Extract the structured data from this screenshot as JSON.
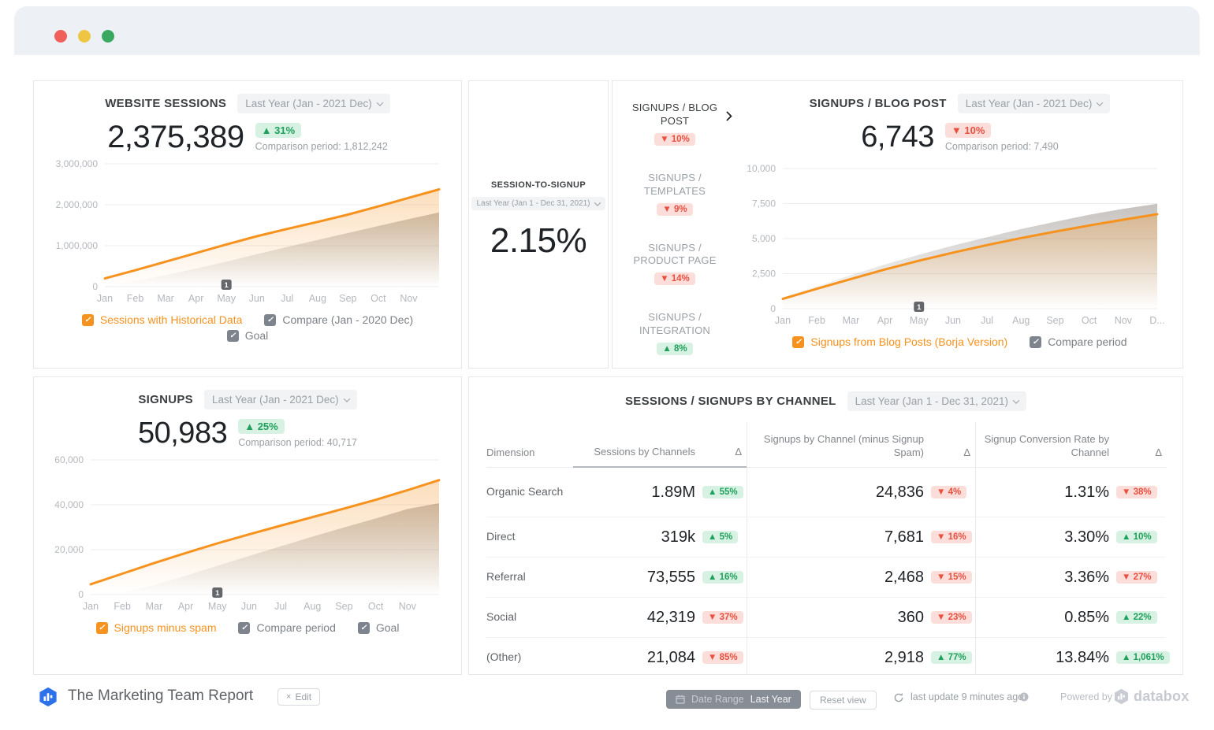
{
  "colors": {
    "accent_orange": "#f6921e",
    "up_green": "#1fa05c",
    "up_green_bg": "#d7f2e2",
    "down_red": "#e8503f",
    "down_red_bg": "#fbddd9",
    "traffic_red": "#f15f5d",
    "traffic_yellow": "#eec643",
    "traffic_green": "#3aa860"
  },
  "cards": {
    "website_sessions": {
      "title": "WEBSITE SESSIONS",
      "range": "Last Year (Jan - 2021 Dec)",
      "value": "2,375,389",
      "badge": {
        "dir": "up",
        "text": "31%"
      },
      "comparison": "Comparison period: 1,812,242",
      "legend": [
        {
          "label": "Sessions with Historical Data"
        },
        {
          "label": "Compare (Jan - 2020 Dec)"
        },
        {
          "label": "Goal"
        }
      ]
    },
    "session_to_signup": {
      "title": "SESSION-TO-SIGNUP",
      "range": "Last Year (Jan 1 - Dec 31, 2021)",
      "value": "2.15%"
    },
    "metric_list": [
      {
        "label": "SIGNUPS / BLOG POST",
        "badge": {
          "dir": "down",
          "text": "10%"
        }
      },
      {
        "label": "SIGNUPS / TEMPLATES",
        "badge": {
          "dir": "down",
          "text": "9%"
        }
      },
      {
        "label": "SIGNUPS / PRODUCT PAGE",
        "badge": {
          "dir": "down",
          "text": "14%"
        }
      },
      {
        "label": "SIGNUPS / INTEGRATION",
        "badge": {
          "dir": "up",
          "text": "8%"
        }
      }
    ],
    "signups_blog_post": {
      "title": "SIGNUPS / BLOG POST",
      "range": "Last Year (Jan - 2021 Dec)",
      "value": "6,743",
      "badge": {
        "dir": "down",
        "text": "10%"
      },
      "comparison": "Comparison period: 7,490",
      "legend": [
        {
          "label": "Signups from Blog Posts (Borja Version)"
        },
        {
          "label": "Compare period"
        }
      ]
    },
    "signups": {
      "title": "SIGNUPS",
      "range": "Last Year (Jan - 2021 Dec)",
      "value": "50,983",
      "badge": {
        "dir": "up",
        "text": "25%"
      },
      "comparison": "Comparison period: 40,717",
      "legend": [
        {
          "label": "Signups minus spam"
        },
        {
          "label": "Compare period"
        },
        {
          "label": "Goal"
        }
      ]
    },
    "table_card": {
      "title": "SESSIONS / SIGNUPS BY CHANNEL",
      "range": "Last Year (Jan 1 - Dec 31, 2021)"
    }
  },
  "chart_data": [
    {
      "id": "website_sessions",
      "type": "area",
      "title": "WEBSITE SESSIONS",
      "x": [
        "Jan",
        "Feb",
        "Mar",
        "Apr",
        "May",
        "Jun",
        "Jul",
        "Aug",
        "Sep",
        "Oct",
        "Nov",
        "Dec"
      ],
      "x_tick_labels": [
        "Jan",
        "Feb",
        "Mar",
        "Apr",
        "May",
        "Jun",
        "Jul",
        "Aug",
        "Sep",
        "Oct",
        "Nov"
      ],
      "ylim": [
        0,
        3000000
      ],
      "yticks": [
        {
          "v": 3000000,
          "label": "3,000,000"
        },
        {
          "v": 2000000,
          "label": "2,000,000"
        },
        {
          "v": 1000000,
          "label": "1,000,000"
        },
        {
          "v": 0,
          "label": "0"
        }
      ],
      "grid": true,
      "legend_position": "bottom",
      "marker": {
        "x_index": 4,
        "label": "1"
      },
      "series": [
        {
          "name": "Compare (Jan - 2020 Dec)",
          "role": "compare",
          "values": [
            30000,
            140000,
            280000,
            440000,
            610000,
            790000,
            970000,
            1140000,
            1310000,
            1480000,
            1650000,
            1812242
          ]
        },
        {
          "name": "Sessions with Historical Data",
          "role": "current",
          "values": [
            200000,
            400000,
            610000,
            820000,
            1030000,
            1230000,
            1410000,
            1580000,
            1760000,
            1960000,
            2170000,
            2375389
          ]
        }
      ]
    },
    {
      "id": "signups_blog_post",
      "type": "area",
      "title": "SIGNUPS / BLOG POST",
      "x": [
        "Jan",
        "Feb",
        "Mar",
        "Apr",
        "May",
        "Jun",
        "Jul",
        "Aug",
        "Sep",
        "Oct",
        "Nov",
        "Dec"
      ],
      "x_tick_labels": [
        "Jan",
        "Feb",
        "Mar",
        "Apr",
        "May",
        "Jun",
        "Jul",
        "Aug",
        "Sep",
        "Oct",
        "Nov",
        "D..."
      ],
      "ylim": [
        0,
        10000
      ],
      "yticks": [
        {
          "v": 10000,
          "label": "10,000"
        },
        {
          "v": 7500,
          "label": "7,500"
        },
        {
          "v": 5000,
          "label": "5,000"
        },
        {
          "v": 2500,
          "label": "2,500"
        },
        {
          "v": 0,
          "label": "0"
        }
      ],
      "grid": true,
      "legend_position": "bottom",
      "marker": {
        "x_index": 4,
        "label": "1"
      },
      "series": [
        {
          "name": "Compare period",
          "role": "compare",
          "values": [
            800,
            1600,
            2400,
            3150,
            3850,
            4500,
            5100,
            5680,
            6200,
            6700,
            7120,
            7490
          ]
        },
        {
          "name": "Signups from Blog Posts (Borja Version)",
          "role": "current",
          "values": [
            700,
            1420,
            2120,
            2800,
            3420,
            4000,
            4540,
            5040,
            5500,
            5940,
            6350,
            6743
          ]
        }
      ]
    },
    {
      "id": "signups",
      "type": "area",
      "title": "SIGNUPS",
      "x": [
        "Jan",
        "Feb",
        "Mar",
        "Apr",
        "May",
        "Jun",
        "Jul",
        "Aug",
        "Sep",
        "Oct",
        "Nov",
        "Dec"
      ],
      "x_tick_labels": [
        "Jan",
        "Feb",
        "Mar",
        "Apr",
        "May",
        "Jun",
        "Jul",
        "Aug",
        "Sep",
        "Oct",
        "Nov"
      ],
      "ylim": [
        0,
        60000
      ],
      "yticks": [
        {
          "v": 60000,
          "label": "60,000"
        },
        {
          "v": 40000,
          "label": "40,000"
        },
        {
          "v": 20000,
          "label": "20,000"
        },
        {
          "v": 0,
          "label": "0"
        }
      ],
      "grid": true,
      "legend_position": "bottom",
      "marker": {
        "x_index": 4,
        "label": "1"
      },
      "series": [
        {
          "name": "Compare period",
          "role": "compare",
          "values": [
            0,
            900,
            4200,
            8400,
            12800,
            17200,
            21500,
            25800,
            29900,
            33900,
            38100,
            40717
          ]
        },
        {
          "name": "Signups minus spam",
          "role": "current",
          "values": [
            4600,
            9300,
            14000,
            18500,
            22800,
            26800,
            30700,
            34500,
            38300,
            42200,
            46500,
            50983
          ]
        }
      ]
    },
    {
      "id": "sessions_signups_by_channel",
      "type": "table",
      "title": "SESSIONS / SIGNUPS BY CHANNEL",
      "columns": [
        "Dimension",
        "Sessions by Channels",
        "Δ",
        "Signups by Channel (minus Signup Spam)",
        "Δ",
        "Signup Conversion Rate by Channel",
        "Δ"
      ],
      "rows": [
        {
          "dimension": "Organic Search",
          "sessions": "1.89M",
          "sessions_delta": {
            "dir": "up",
            "text": "55%"
          },
          "signups": "24,836",
          "signups_delta": {
            "dir": "down",
            "text": "4%"
          },
          "conversion": "1.31%",
          "conversion_delta": {
            "dir": "down",
            "text": "38%"
          }
        },
        {
          "dimension": "Direct",
          "sessions": "319k",
          "sessions_delta": {
            "dir": "up",
            "text": "5%"
          },
          "signups": "7,681",
          "signups_delta": {
            "dir": "down",
            "text": "16%"
          },
          "conversion": "3.30%",
          "conversion_delta": {
            "dir": "up",
            "text": "10%"
          }
        },
        {
          "dimension": "Referral",
          "sessions": "73,555",
          "sessions_delta": {
            "dir": "up",
            "text": "16%"
          },
          "signups": "2,468",
          "signups_delta": {
            "dir": "down",
            "text": "15%"
          },
          "conversion": "3.36%",
          "conversion_delta": {
            "dir": "down",
            "text": "27%"
          }
        },
        {
          "dimension": "Social",
          "sessions": "42,319",
          "sessions_delta": {
            "dir": "down",
            "text": "37%"
          },
          "signups": "360",
          "signups_delta": {
            "dir": "down",
            "text": "23%"
          },
          "conversion": "0.85%",
          "conversion_delta": {
            "dir": "up",
            "text": "22%"
          }
        },
        {
          "dimension": "(Other)",
          "sessions": "21,084",
          "sessions_delta": {
            "dir": "down",
            "text": "85%"
          },
          "signups": "2,918",
          "signups_delta": {
            "dir": "up",
            "text": "77%"
          },
          "conversion": "13.84%",
          "conversion_delta": {
            "dir": "up",
            "text": "1,061%"
          }
        }
      ]
    }
  ],
  "footer": {
    "report_title": "The Marketing Team Report",
    "edit_label": "Edit",
    "date_range_label": "Date Range",
    "date_range_value": "Last Year",
    "reset_label": "Reset view",
    "last_update": "last update 9 minutes ago",
    "powered_by": "Powered by",
    "brand": "databox"
  }
}
